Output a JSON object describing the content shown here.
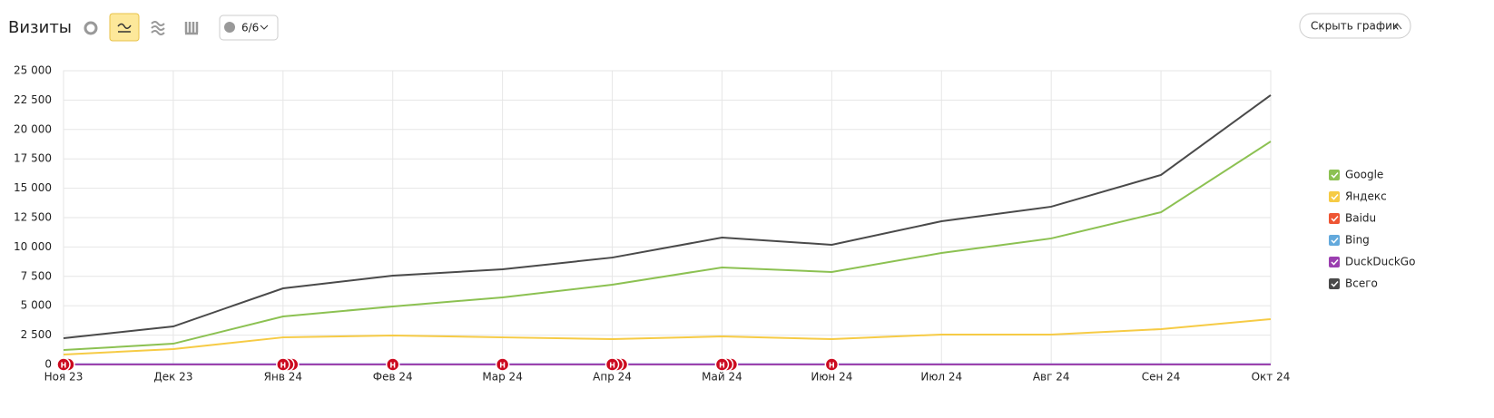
{
  "toolbar": {
    "title": "Визиты",
    "filter": "6/6",
    "hide_button": "Скрыть график"
  },
  "chart_data": {
    "type": "line",
    "categories": [
      "Ноя 23",
      "Дек 23",
      "Янв 24",
      "Фев 24",
      "Мар 24",
      "Апр 24",
      "Май 24",
      "Июн 24",
      "Июл 24",
      "Авг 24",
      "Сен 24",
      "Окт 24"
    ],
    "series": [
      {
        "name": "Google",
        "color": "#8cc152",
        "values": [
          1230,
          1770,
          4090,
          4940,
          5710,
          6790,
          8260,
          7870,
          9490,
          10730,
          12960,
          18980
        ]
      },
      {
        "name": "Яндекс",
        "color": "#f6cb45",
        "values": [
          850,
          1310,
          2310,
          2470,
          2310,
          2160,
          2390,
          2160,
          2550,
          2550,
          3010,
          3860
        ]
      },
      {
        "name": "Baidu",
        "color": "#ee5533",
        "values": [
          0,
          0,
          0,
          0,
          0,
          0,
          0,
          0,
          0,
          0,
          0,
          0
        ]
      },
      {
        "name": "Bing",
        "color": "#63a9dc",
        "values": [
          20,
          20,
          20,
          20,
          20,
          20,
          20,
          20,
          20,
          20,
          20,
          20
        ]
      },
      {
        "name": "DuckDuckGo",
        "color": "#9b3fb0",
        "values": [
          5,
          5,
          5,
          5,
          5,
          5,
          5,
          5,
          5,
          5,
          5,
          5
        ]
      },
      {
        "name": "Всего",
        "color": "#4a4a4a",
        "values": [
          2240,
          3240,
          6480,
          7560,
          8100,
          9100,
          10800,
          10190,
          12190,
          13430,
          16130,
          22920
        ]
      }
    ],
    "ylim": [
      0,
      25000
    ],
    "yticks": [
      0,
      {
        "value": 2500,
        "label": "2 500"
      },
      {
        "value": 5000,
        "label": "5 000"
      },
      {
        "value": 7500,
        "label": "7 500"
      },
      {
        "value": 10000,
        "label": "10 000"
      },
      {
        "value": 12500,
        "label": "12 500"
      },
      {
        "value": 15000,
        "label": "15 000"
      },
      {
        "value": 17500,
        "label": "17 500"
      },
      {
        "value": 20000,
        "label": "20 000"
      },
      {
        "value": 22500,
        "label": "22 500"
      },
      {
        "value": 25000,
        "label": "25 000"
      }
    ],
    "grid": true,
    "annotations": [
      {
        "x": "Ноя 23",
        "label": "Н",
        "count": 2
      },
      {
        "x": "Янв 24",
        "label": "Н",
        "count": 3
      },
      {
        "x": "Фев 24",
        "label": "Н",
        "count": 1
      },
      {
        "x": "Мар 24",
        "label": "Н",
        "count": 1
      },
      {
        "x": "Апр 24",
        "label": "Н",
        "count": 3
      },
      {
        "x": "Май 24",
        "label": "Н",
        "count": 3
      },
      {
        "x": "Июн 24",
        "label": "Н",
        "count": 1
      }
    ]
  }
}
